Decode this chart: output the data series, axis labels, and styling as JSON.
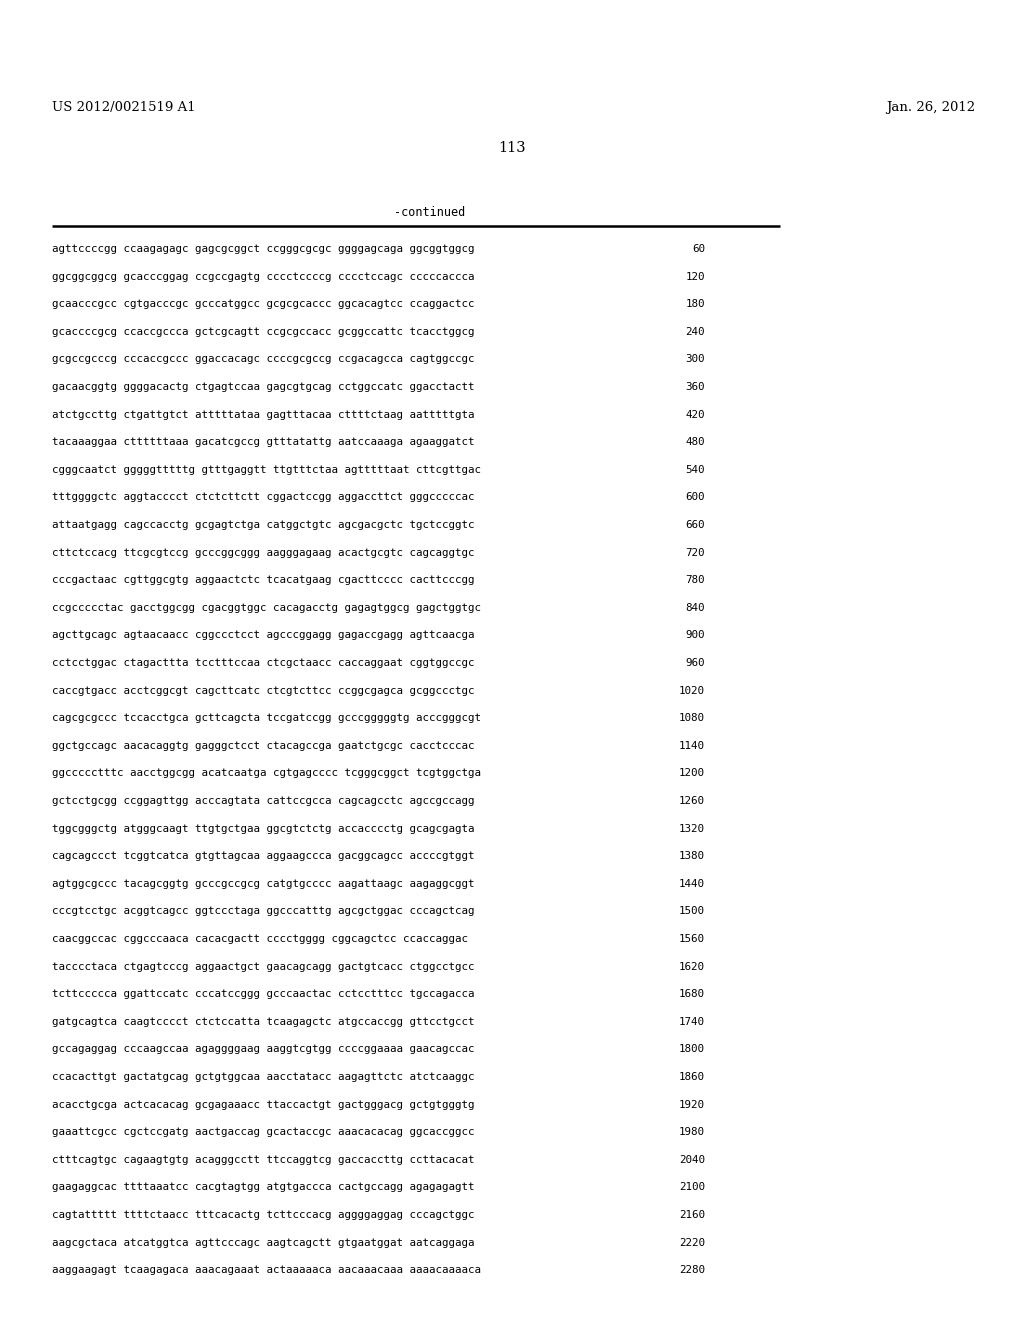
{
  "header_left": "US 2012/0021519 A1",
  "header_right": "Jan. 26, 2012",
  "page_number": "113",
  "continued_label": "-continued",
  "background_color": "#ffffff",
  "text_color": "#000000",
  "seq_font_size": 7.8,
  "header_font_size": 9.5,
  "page_num_font_size": 10.5,
  "continued_font_size": 8.5,
  "sequence_lines": [
    {
      "seq": "agttccccgg ccaagagagc gagcgcggct ccgggcgcgc ggggagcaga ggcggtggcg",
      "num": "60"
    },
    {
      "seq": "ggcggcggcg gcacccggag ccgccgagtg cccctccccg cccctccagc cccccaccca",
      "num": "120"
    },
    {
      "seq": "gcaacccgcc cgtgacccgc gcccatggcc gcgcgcaccc ggcacagtcc ccaggactcc",
      "num": "180"
    },
    {
      "seq": "gcaccccgcg ccaccgccca gctcgcagtt ccgcgccacc gcggccattc tcacctggcg",
      "num": "240"
    },
    {
      "seq": "gcgccgcccg cccaccgccc ggaccacagc ccccgcgccg ccgacagcca cagtggccgc",
      "num": "300"
    },
    {
      "seq": "gacaacggtg ggggacactg ctgagtccaa gagcgtgcag cctggccatc ggacctactt",
      "num": "360"
    },
    {
      "seq": "atctgccttg ctgattgtct atttttataa gagtttacaa cttttctaag aatttttgta",
      "num": "420"
    },
    {
      "seq": "tacaaaggaa cttttttaaa gacatcgccg gtttatattg aatccaaaga agaaggatct",
      "num": "480"
    },
    {
      "seq": "cgggcaatct gggggtttttg gtttgaggtt ttgtttctaa agtttttaat cttcgttgac",
      "num": "540"
    },
    {
      "seq": "tttggggctc aggtacccct ctctcttctt cggactccgg aggaccttct gggcccccac",
      "num": "600"
    },
    {
      "seq": "attaatgagg cagccacctg gcgagtctga catggctgtc agcgacgctc tgctccggtc",
      "num": "660"
    },
    {
      "seq": "cttctccacg ttcgcgtccg gcccggcggg aagggagaag acactgcgtc cagcaggtgc",
      "num": "720"
    },
    {
      "seq": "cccgactaac cgttggcgtg aggaactctc tcacatgaag cgacttcccc cacttcccgg",
      "num": "780"
    },
    {
      "seq": "ccgccccctac gacctggcgg cgacggtggc cacagacctg gagagtggcg gagctggtgc",
      "num": "840"
    },
    {
      "seq": "agcttgcagc agtaacaacc cggccctcct agcccggagg gagaccgagg agttcaacga",
      "num": "900"
    },
    {
      "seq": "cctcctggac ctagacttta tcctttccaa ctcgctaacc caccaggaat cggtggccgc",
      "num": "960"
    },
    {
      "seq": "caccgtgacc acctcggcgt cagcttcatc ctcgtcttcc ccggcgagca gcggccctgc",
      "num": "1020"
    },
    {
      "seq": "cagcgcgccc tccacctgca gcttcagcta tccgatccgg gcccgggggtg acccgggcgt",
      "num": "1080"
    },
    {
      "seq": "ggctgccagc aacacaggtg gagggctcct ctacagccga gaatctgcgc cacctcccac",
      "num": "1140"
    },
    {
      "seq": "ggccccctttc aacctggcgg acatcaatga cgtgagcccc tcgggcggct tcgtggctga",
      "num": "1200"
    },
    {
      "seq": "gctcctgcgg ccggagttgg acccagtata cattccgcca cagcagcctc agccgccagg",
      "num": "1260"
    },
    {
      "seq": "tggcgggctg atgggcaagt ttgtgctgaa ggcgtctctg accacccctg gcagcgagta",
      "num": "1320"
    },
    {
      "seq": "cagcagccct tcggtcatca gtgttagcaa aggaagccca gacggcagcc accccgtggt",
      "num": "1380"
    },
    {
      "seq": "agtggcgccc tacagcggtg gcccgccgcg catgtgcccc aagattaagc aagaggcggt",
      "num": "1440"
    },
    {
      "seq": "cccgtcctgc acggtcagcc ggtccctaga ggcccatttg agcgctggac cccagctcag",
      "num": "1500"
    },
    {
      "seq": "caacggccac cggcccaaca cacacgactt cccctgggg cggcagctcc ccaccaggac",
      "num": "1560"
    },
    {
      "seq": "tacccctaca ctgagtcccg aggaactgct gaacagcagg gactgtcacc ctggcctgcc",
      "num": "1620"
    },
    {
      "seq": "tcttccccca ggattccatc cccatccggg gcccaactac cctcctttcc tgccagacca",
      "num": "1680"
    },
    {
      "seq": "gatgcagtca caagtcccct ctctccatta tcaagagctc atgccaccgg gttcctgcct",
      "num": "1740"
    },
    {
      "seq": "gccagaggag cccaagccaa agaggggaag aaggtcgtgg ccccggaaaa gaacagccac",
      "num": "1800"
    },
    {
      "seq": "ccacacttgt gactatgcag gctgtggcaa aacctatacc aagagttctc atctcaaggc",
      "num": "1860"
    },
    {
      "seq": "acacctgcga actcacacag gcgagaaacc ttaccactgt gactgggacg gctgtgggtg",
      "num": "1920"
    },
    {
      "seq": "gaaattcgcc cgctccgatg aactgaccag gcactaccgc aaacacacag ggcaccggcc",
      "num": "1980"
    },
    {
      "seq": "ctttcagtgc cagaagtgtg acagggcctt ttccaggtcg gaccaccttg ccttacacat",
      "num": "2040"
    },
    {
      "seq": "gaagaggcac ttttaaatcc cacgtagtgg atgtgaccca cactgccagg agagagagtt",
      "num": "2100"
    },
    {
      "seq": "cagtattttt ttttctaacc tttcacactg tcttcccacg aggggaggag cccagctggc",
      "num": "2160"
    },
    {
      "seq": "aagcgctaca atcatggtca agttcccagc aagtcagctt gtgaatggat aatcaggaga",
      "num": "2220"
    },
    {
      "seq": "aaggaagagt tcaagagaca aaacagaaat actaaaaaca aacaaacaaa aaaacaaaaca",
      "num": "2280"
    }
  ]
}
